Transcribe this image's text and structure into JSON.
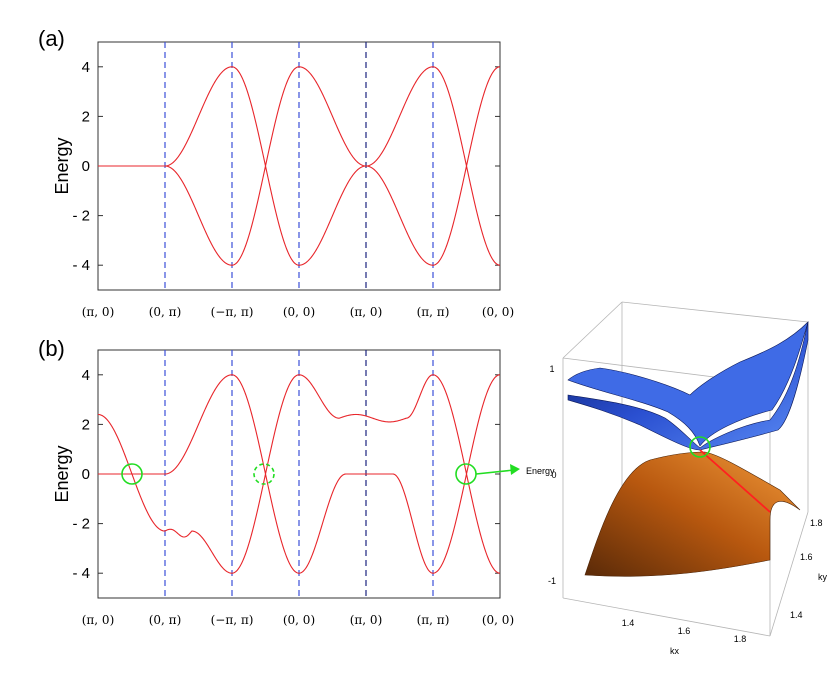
{
  "panels": {
    "a_label": "(a)",
    "b_label": "(b)"
  },
  "chart_data": [
    {
      "type": "line",
      "panel": "(a)",
      "ylabel": "Energy",
      "ylim": [
        -5,
        5
      ],
      "yticks": [
        "4",
        "2",
        "0",
        "- 2",
        "- 4"
      ],
      "x_ticks": [
        "(π, 0)",
        "(0, π)",
        "(−π, π)",
        "(0, 0)",
        "(π, 0)",
        "(π, π)",
        "(0, 0)"
      ],
      "k_path_segments": 6,
      "series": [
        {
          "values_at_ticks": [
            0,
            0,
            4,
            -4,
            0,
            4,
            -4
          ]
        },
        {
          "values_at_ticks": [
            0,
            0,
            -4,
            4,
            0,
            -4,
            4
          ]
        }
      ]
    },
    {
      "type": "line",
      "panel": "(b)",
      "ylabel": "Energy",
      "ylim": [
        -5,
        5
      ],
      "yticks": [
        "4",
        "2",
        "0",
        "- 2",
        "- 4"
      ],
      "x_ticks": [
        "(π, 0)",
        "(0, π)",
        "(−π, π)",
        "(0, 0)",
        "(π, 0)",
        "(π, π)",
        "(0, 0)"
      ],
      "k_path_segments": 6,
      "series": [
        {
          "values_at_ticks": [
            2.4,
            0,
            4,
            -4,
            2.4,
            4,
            -4
          ]
        },
        {
          "values_at_ticks": [
            0,
            -2.4,
            -4,
            4,
            0,
            -4,
            4
          ]
        }
      ],
      "dirac_points_marked": 3
    },
    {
      "type": "surface",
      "panel": "inset-3d",
      "xlabel": "kx",
      "ylabel": "ky",
      "zlabel": "Energy",
      "x_ticks": [
        "1.4",
        "1.6",
        "1.8"
      ],
      "y_ticks": [
        "1.4",
        "1.6",
        "1.8"
      ],
      "z_ticks": [
        "1",
        "0",
        "-1"
      ],
      "upper_surface_color": "#2f55d4",
      "lower_surface_color": "#d96a1e"
    }
  ]
}
